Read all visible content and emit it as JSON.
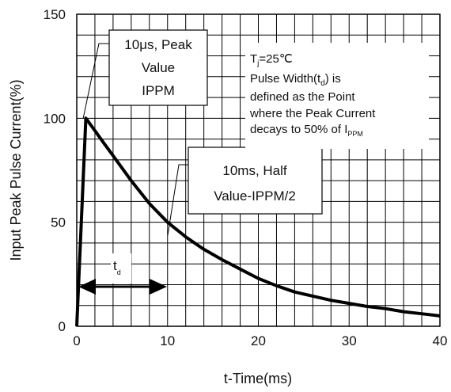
{
  "chart_data": {
    "type": "line",
    "xlabel": "t-Time(ms)",
    "ylabel": "Input Peak Pulse Current(%)",
    "xlim": [
      0,
      40
    ],
    "ylim": [
      0,
      150
    ],
    "x_ticks": [
      "0",
      "10",
      "20",
      "30",
      "40"
    ],
    "y_ticks": [
      "0",
      "50",
      "100",
      "150"
    ],
    "grid": true,
    "series": [
      {
        "x": [
          0,
          1,
          2,
          3,
          4,
          5,
          6,
          8,
          10,
          12,
          14,
          16,
          18,
          20,
          22,
          24,
          26,
          28,
          30,
          32,
          34,
          36,
          38,
          40
        ],
        "values": [
          0,
          100,
          94,
          88,
          82,
          76,
          70,
          59,
          50,
          43,
          37,
          32,
          27.5,
          23,
          19.5,
          16.5,
          14.5,
          12.5,
          11,
          9.5,
          8.5,
          7,
          6,
          5
        ]
      }
    ],
    "annotations": {
      "peak_box": [
        "10μs, Peak",
        "Value",
        "IPPM"
      ],
      "half_box": [
        "10ms, Half",
        "Value-IPPM/2"
      ],
      "td_label": {
        "main": "t",
        "sub": "d"
      },
      "note": {
        "line1": {
          "pre": "T",
          "sub": "j",
          "post": "=25℃"
        },
        "line2": {
          "pre": "Pulse Width(t",
          "sub": "d",
          "post": ") is"
        },
        "line3": "defined as the Point",
        "line4": "where the Peak Current",
        "line5": {
          "pre": "decays to 50% of I",
          "sub": "PPM"
        }
      }
    }
  }
}
